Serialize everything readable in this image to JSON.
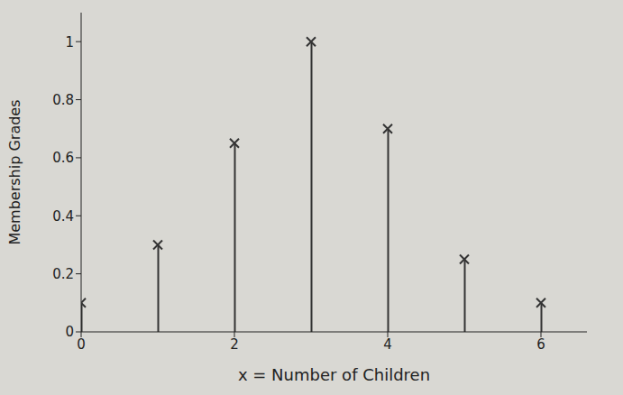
{
  "chart_data": {
    "type": "stem",
    "x_label": "x = Number of Children",
    "y_label": "Membership Grades",
    "x": [
      0,
      1,
      2,
      3,
      4,
      5,
      6
    ],
    "values": [
      0.1,
      0.3,
      0.65,
      1.0,
      0.7,
      0.25,
      0.1
    ],
    "color": "#333333",
    "marker": "x",
    "xlim": [
      0,
      6.6
    ],
    "xticks": [
      0,
      2,
      4,
      6
    ],
    "ylim": [
      0,
      1.1
    ],
    "yticks": [
      0,
      0.2,
      0.4,
      0.6,
      0.8,
      1
    ],
    "grid": false
  }
}
